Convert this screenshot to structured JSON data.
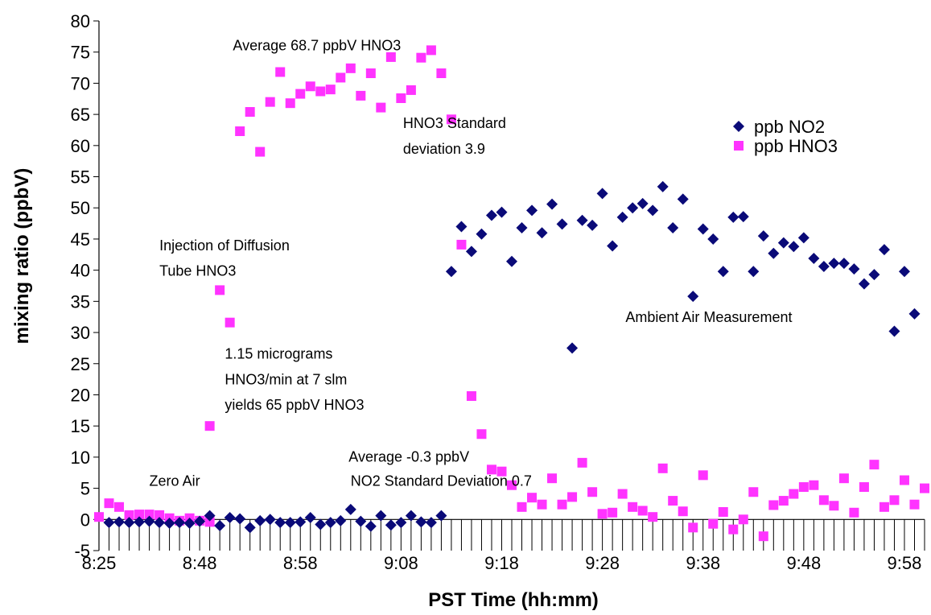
{
  "chart_data": {
    "type": "scatter",
    "xlabel": "PST Time (hh:mm)",
    "ylabel": "mixing ratio (ppbV)",
    "ylim": [
      -5,
      80
    ],
    "yticks": [
      -5,
      0,
      5,
      10,
      15,
      20,
      25,
      30,
      35,
      40,
      45,
      50,
      55,
      60,
      65,
      70,
      75,
      80
    ],
    "x_ticks": [
      {
        "x": 0,
        "label": "8:25"
      },
      {
        "x": 10,
        "label": "8:48"
      },
      {
        "x": 20,
        "label": "8:58"
      },
      {
        "x": 30,
        "label": "9:08"
      },
      {
        "x": 40,
        "label": "9:18"
      },
      {
        "x": 50,
        "label": "9:28"
      },
      {
        "x": 60,
        "label": "9:38"
      },
      {
        "x": 70,
        "label": "9:48"
      },
      {
        "x": 80,
        "label": "9:58"
      }
    ],
    "grid": false,
    "legend_position": "top-right",
    "series": [
      {
        "name": "ppb NO2",
        "marker": "diamond",
        "color": "#0a0a78",
        "points": [
          [
            1,
            -0.5
          ],
          [
            2,
            -0.4
          ],
          [
            3,
            -0.5
          ],
          [
            4,
            -0.4
          ],
          [
            5,
            -0.3
          ],
          [
            6,
            -0.5
          ],
          [
            7,
            -0.6
          ],
          [
            8,
            -0.5
          ],
          [
            9,
            -0.6
          ],
          [
            10,
            -0.3
          ],
          [
            11,
            0.6
          ],
          [
            12,
            -1.0
          ],
          [
            13,
            0.3
          ],
          [
            14,
            0.1
          ],
          [
            15,
            -1.3
          ],
          [
            16,
            -0.2
          ],
          [
            17,
            0.0
          ],
          [
            18,
            -0.5
          ],
          [
            19,
            -0.5
          ],
          [
            20,
            -0.4
          ],
          [
            21,
            0.3
          ],
          [
            22,
            -0.8
          ],
          [
            23,
            -0.5
          ],
          [
            24,
            -0.2
          ],
          [
            25,
            1.6
          ],
          [
            26,
            -0.3
          ],
          [
            27,
            -1.1
          ],
          [
            28,
            0.6
          ],
          [
            29,
            -0.9
          ],
          [
            30,
            -0.5
          ],
          [
            31,
            0.6
          ],
          [
            32,
            -0.4
          ],
          [
            33,
            -0.5
          ],
          [
            34,
            0.6
          ],
          [
            35,
            39.8
          ],
          [
            36,
            47.0
          ],
          [
            37,
            43.0
          ],
          [
            38,
            45.8
          ],
          [
            39,
            48.8
          ],
          [
            40,
            49.3
          ],
          [
            41,
            41.4
          ],
          [
            42,
            46.8
          ],
          [
            43,
            49.6
          ],
          [
            44,
            46.0
          ],
          [
            45,
            50.6
          ],
          [
            46,
            47.4
          ],
          [
            47,
            27.5
          ],
          [
            48,
            48.0
          ],
          [
            49,
            47.2
          ],
          [
            50,
            52.3
          ],
          [
            51,
            43.9
          ],
          [
            52,
            48.5
          ],
          [
            53,
            50.0
          ],
          [
            54,
            50.7
          ],
          [
            55,
            49.6
          ],
          [
            56,
            53.4
          ],
          [
            57,
            46.8
          ],
          [
            58,
            51.4
          ],
          [
            59,
            35.8
          ],
          [
            60,
            46.6
          ],
          [
            61,
            45.0
          ],
          [
            62,
            39.8
          ],
          [
            63,
            48.5
          ],
          [
            64,
            48.6
          ],
          [
            65,
            39.8
          ],
          [
            66,
            45.5
          ],
          [
            67,
            42.7
          ],
          [
            68,
            44.4
          ],
          [
            69,
            43.8
          ],
          [
            70,
            45.2
          ],
          [
            71,
            41.9
          ],
          [
            72,
            40.6
          ],
          [
            73,
            41.1
          ],
          [
            74,
            41.1
          ],
          [
            75,
            40.2
          ],
          [
            76,
            37.8
          ],
          [
            77,
            39.3
          ],
          [
            78,
            43.3
          ],
          [
            79,
            30.2
          ],
          [
            80,
            39.8
          ],
          [
            81,
            33.0
          ]
        ]
      },
      {
        "name": "ppb HNO3",
        "marker": "square",
        "color": "#ff33ff",
        "points": [
          [
            0,
            0.4
          ],
          [
            1,
            2.6
          ],
          [
            2,
            2.0
          ],
          [
            3,
            0.7
          ],
          [
            4,
            0.8
          ],
          [
            5,
            0.8
          ],
          [
            6,
            0.7
          ],
          [
            7,
            0.2
          ],
          [
            8,
            -0.2
          ],
          [
            9,
            0.2
          ],
          [
            10,
            -0.2
          ],
          [
            11,
            -0.4
          ],
          [
            11,
            15.0
          ],
          [
            12,
            36.8
          ],
          [
            13,
            31.6
          ],
          [
            14,
            62.3
          ],
          [
            15,
            65.4
          ],
          [
            16,
            59.0
          ],
          [
            17,
            67.0
          ],
          [
            18,
            71.8
          ],
          [
            19,
            66.8
          ],
          [
            20,
            68.3
          ],
          [
            21,
            69.5
          ],
          [
            22,
            68.7
          ],
          [
            23,
            69.0
          ],
          [
            24,
            70.9
          ],
          [
            25,
            72.4
          ],
          [
            26,
            68.0
          ],
          [
            27,
            71.6
          ],
          [
            28,
            66.1
          ],
          [
            29,
            74.2
          ],
          [
            30,
            67.6
          ],
          [
            31,
            68.9
          ],
          [
            32,
            74.1
          ],
          [
            33,
            75.3
          ],
          [
            34,
            71.6
          ],
          [
            35,
            64.2
          ],
          [
            36,
            44.1
          ],
          [
            37,
            19.8
          ],
          [
            38,
            13.7
          ],
          [
            39,
            8.0
          ],
          [
            40,
            7.7
          ],
          [
            41,
            5.5
          ],
          [
            42,
            2.0
          ],
          [
            43,
            3.5
          ],
          [
            44,
            2.4
          ],
          [
            45,
            6.6
          ],
          [
            46,
            2.4
          ],
          [
            47,
            3.6
          ],
          [
            48,
            9.1
          ],
          [
            49,
            4.4
          ],
          [
            50,
            0.9
          ],
          [
            51,
            1.1
          ],
          [
            52,
            4.1
          ],
          [
            53,
            2.0
          ],
          [
            54,
            1.4
          ],
          [
            55,
            0.4
          ],
          [
            56,
            8.2
          ],
          [
            57,
            3.0
          ],
          [
            58,
            1.3
          ],
          [
            59,
            -1.3
          ],
          [
            60,
            7.1
          ],
          [
            61,
            -0.7
          ],
          [
            62,
            1.2
          ],
          [
            63,
            -1.6
          ],
          [
            64,
            0.0
          ],
          [
            65,
            4.4
          ],
          [
            66,
            -2.7
          ],
          [
            67,
            2.3
          ],
          [
            68,
            3.0
          ],
          [
            69,
            4.1
          ],
          [
            70,
            5.2
          ],
          [
            71,
            5.5
          ],
          [
            72,
            3.1
          ],
          [
            73,
            2.2
          ],
          [
            74,
            6.6
          ],
          [
            75,
            1.1
          ],
          [
            76,
            5.2
          ],
          [
            77,
            8.8
          ],
          [
            78,
            2.0
          ],
          [
            79,
            3.1
          ],
          [
            80,
            6.3
          ],
          [
            81,
            2.4
          ],
          [
            82,
            5.0
          ]
        ]
      }
    ],
    "annotations": [
      {
        "text": "Average 68.7 ppbV HNO3",
        "x": 13.3,
        "y": 75.3
      },
      {
        "text": "HNO3 Standard",
        "x": 30.2,
        "y": 62.8
      },
      {
        "text": "deviation 3.9",
        "x": 30.2,
        "y": 58.7
      },
      {
        "text": "Injection of Diffusion",
        "x": 6.0,
        "y": 43.2
      },
      {
        "text": "Tube HNO3",
        "x": 6.0,
        "y": 39.1
      },
      {
        "text": "Ambient Air Measurement",
        "x": 52.3,
        "y": 31.7
      },
      {
        "text": "1.15 micrograms",
        "x": 12.5,
        "y": 25.8
      },
      {
        "text": "HNO3/min at 7 slm",
        "x": 12.5,
        "y": 21.7
      },
      {
        "text": "yields 65 ppbV HNO3",
        "x": 12.5,
        "y": 17.6
      },
      {
        "text": "Average -0.3 ppbV",
        "x": 24.8,
        "y": 9.3
      },
      {
        "text": "Zero Air",
        "x": 5.0,
        "y": 5.4
      },
      {
        "text": "NO2 Standard Deviation 0.7",
        "x": 25.0,
        "y": 5.4
      }
    ]
  }
}
